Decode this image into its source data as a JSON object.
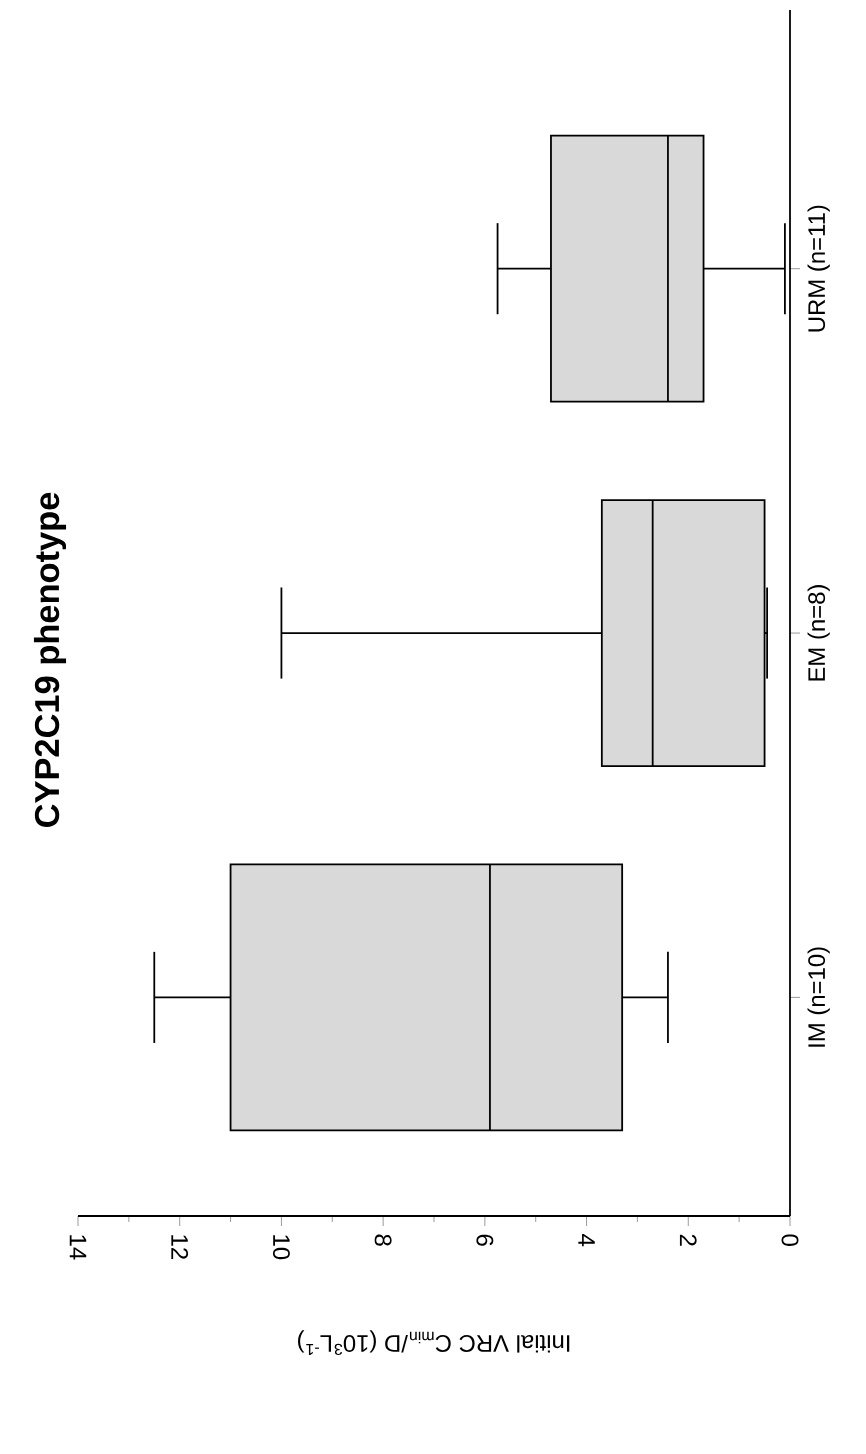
{
  "chart_data": {
    "type": "box",
    "title": "CYP2C19 phenotype",
    "xlabel": "Initial VRC C$_{min}$/D (10$^{3}$L$^{-1}$)",
    "orientation": "horizontal",
    "categories": [
      "URM (n=11)",
      "EM (n=8)",
      "IM (n=10)"
    ],
    "color": "#d9d9d9",
    "boxes": [
      {
        "low": 0.1,
        "q1": 1.7,
        "median": 2.4,
        "q3": 4.7,
        "high": 5.75
      },
      {
        "low": 0.45,
        "q1": 0.5,
        "median": 2.7,
        "q3": 3.7,
        "high": 10.0
      },
      {
        "low": 2.4,
        "q1": 3.3,
        "median": 5.9,
        "q3": 11.0,
        "high": 12.5
      }
    ],
    "xlim": [
      14,
      0
    ],
    "xticks": [
      0,
      {
        "value": 1,
        "label": null
      },
      2,
      {
        "value": 3,
        "label": null
      },
      4,
      {
        "value": 5,
        "label": null
      },
      6,
      {
        "value": 7,
        "label": null
      },
      8,
      {
        "value": 9,
        "label": null
      },
      10,
      {
        "value": 11,
        "label": null
      },
      12,
      {
        "value": 13,
        "label": null
      },
      14
    ]
  }
}
